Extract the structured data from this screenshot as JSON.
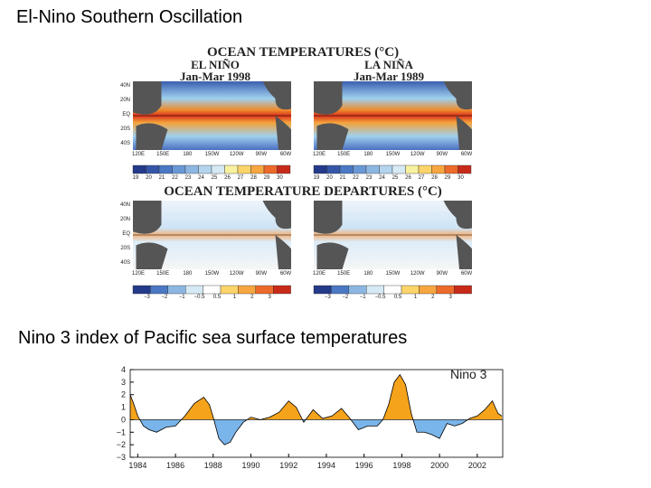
{
  "title": "El-Nino Southern Oscillation",
  "subtitle": "Nino 3 index of Pacific sea surface temperatures",
  "maps": {
    "top_title": "OCEAN TEMPERATURES (°C)",
    "bottom_title": "OCEAN TEMPERATURE DEPARTURES (°C)",
    "left_label": "EL NIÑO",
    "left_period": "Jan-Mar 1998",
    "right_label": "LA NIÑA",
    "right_period": "Jan-Mar 1989",
    "lat_labels": [
      "40N",
      "20N",
      "EQ",
      "20S",
      "40S"
    ],
    "lon_labels": [
      "120E",
      "150E",
      "180",
      "150W",
      "120W",
      "90W",
      "60W"
    ],
    "temp_scale": [
      "19",
      "20",
      "21",
      "22",
      "23",
      "24",
      "25",
      "26",
      "27",
      "28",
      "29",
      "30"
    ],
    "departure_scale": [
      "−3",
      "−2",
      "−1",
      "−0.5",
      "0.5",
      "1",
      "2",
      "3"
    ]
  },
  "chart_data": {
    "type": "area",
    "annotation": "Nino 3",
    "x": [
      1983.6,
      1983.8,
      1984.0,
      1984.3,
      1984.6,
      1985.0,
      1985.5,
      1986.0,
      1986.5,
      1987.0,
      1987.5,
      1987.8,
      1988.0,
      1988.3,
      1988.6,
      1988.9,
      1989.2,
      1989.6,
      1990.0,
      1990.5,
      1991.0,
      1991.5,
      1992.0,
      1992.4,
      1992.8,
      1993.3,
      1993.8,
      1994.3,
      1994.8,
      1995.2,
      1995.7,
      1996.2,
      1996.7,
      1997.0,
      1997.3,
      1997.6,
      1997.9,
      1998.2,
      1998.5,
      1998.8,
      1999.2,
      1999.6,
      2000.0,
      2000.4,
      2000.8,
      2001.2,
      2001.6,
      2002.0,
      2002.4,
      2002.8,
      2003.1,
      2003.3
    ],
    "values": [
      2.0,
      1.2,
      0.3,
      -0.5,
      -0.8,
      -1.0,
      -0.6,
      -0.5,
      0.3,
      1.3,
      1.8,
      1.2,
      0.2,
      -1.5,
      -2.0,
      -1.8,
      -1.0,
      -0.2,
      0.2,
      0.0,
      0.2,
      0.6,
      1.5,
      1.0,
      -0.2,
      0.8,
      0.1,
      0.3,
      0.9,
      0.2,
      -0.8,
      -0.5,
      -0.5,
      0.0,
      1.2,
      3.0,
      3.6,
      2.8,
      0.5,
      -1.0,
      -1.0,
      -1.2,
      -1.5,
      -0.3,
      -0.5,
      -0.3,
      0.1,
      0.3,
      0.8,
      1.5,
      0.5,
      0.3
    ],
    "color_above": "#f5a31b",
    "color_below": "#79b4ea",
    "line_color": "#000000",
    "xlim": [
      1983.6,
      2003.35
    ],
    "ylim": [
      -3,
      4
    ],
    "xticks": [
      1984,
      1986,
      1988,
      1990,
      1992,
      1994,
      1996,
      1998,
      2000,
      2002
    ],
    "yticks": [
      {
        "value": -3,
        "label": "−3"
      },
      {
        "value": -2,
        "label": "−2"
      },
      {
        "value": -1,
        "label": "−1"
      },
      0,
      1,
      2,
      3,
      4
    ],
    "grid": false
  }
}
